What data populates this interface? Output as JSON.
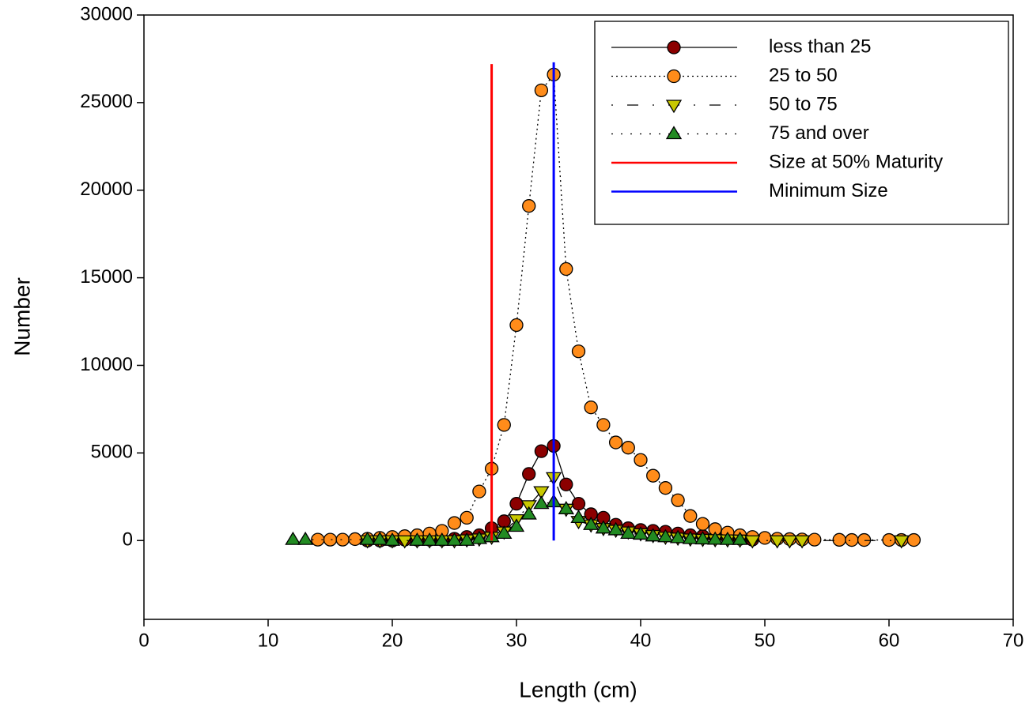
{
  "chart_data": {
    "type": "line",
    "x_label": "Length (cm)",
    "y_label": "Number",
    "xlim": [
      0,
      70
    ],
    "xticks": [
      0,
      10,
      20,
      30,
      40,
      50,
      60,
      70
    ],
    "ylim": [
      -4500,
      30000
    ],
    "yticks": [
      0,
      5000,
      10000,
      15000,
      20000,
      25000,
      30000
    ],
    "grid": false,
    "legend": "upper right",
    "series": [
      {
        "name": "less than 25",
        "color": "#8b0000",
        "marker": "circle",
        "dash": "solid",
        "x": [
          18,
          19,
          20,
          21,
          22,
          23,
          24,
          25,
          26,
          27,
          28,
          29,
          30,
          31,
          32,
          33,
          34,
          35,
          36,
          37,
          38,
          39,
          40,
          41,
          42,
          43,
          44,
          45,
          46,
          47,
          48,
          49
        ],
        "values": [
          0,
          0,
          0,
          50,
          50,
          50,
          50,
          100,
          200,
          300,
          700,
          1100,
          2100,
          3800,
          5100,
          5400,
          3200,
          2100,
          1500,
          1300,
          900,
          700,
          600,
          550,
          500,
          400,
          300,
          250,
          200,
          150,
          100,
          50
        ]
      },
      {
        "name": "25 to 50",
        "color": "#ff8c1a",
        "marker": "circle",
        "dash": "dotted",
        "x": [
          14,
          15,
          16,
          17,
          18,
          19,
          20,
          21,
          22,
          23,
          24,
          25,
          26,
          27,
          28,
          29,
          30,
          31,
          32,
          33,
          34,
          35,
          36,
          37,
          38,
          39,
          40,
          41,
          42,
          43,
          44,
          45,
          46,
          47,
          48,
          49,
          50,
          51,
          52,
          53,
          54,
          56,
          57,
          58,
          60,
          61,
          62
        ],
        "values": [
          50,
          50,
          50,
          80,
          100,
          150,
          200,
          250,
          300,
          400,
          550,
          1000,
          1300,
          2800,
          4100,
          6600,
          12300,
          19100,
          25700,
          26600,
          15500,
          10800,
          7600,
          6600,
          5600,
          5300,
          4600,
          3700,
          3000,
          2300,
          1400,
          950,
          650,
          450,
          300,
          200,
          150,
          100,
          80,
          60,
          50,
          40,
          30,
          30,
          30,
          30,
          30
        ]
      },
      {
        "name": "50 to 75",
        "color": "#c8c800",
        "marker": "triangle-down",
        "dash": "dashdot",
        "x": [
          18,
          19,
          20,
          21,
          22,
          23,
          24,
          25,
          26,
          27,
          28,
          29,
          30,
          31,
          32,
          33,
          34,
          35,
          36,
          37,
          38,
          39,
          40,
          41,
          42,
          43,
          44,
          45,
          46,
          47,
          48,
          49,
          51,
          52,
          53,
          61
        ],
        "values": [
          0,
          0,
          0,
          0,
          0,
          0,
          0,
          0,
          50,
          100,
          200,
          500,
          1200,
          2000,
          2800,
          3600,
          1800,
          1100,
          900,
          700,
          600,
          500,
          400,
          300,
          200,
          150,
          100,
          80,
          60,
          50,
          40,
          0,
          0,
          0,
          0,
          0
        ]
      },
      {
        "name": "75 and over",
        "color": "#228b22",
        "marker": "triangle-up",
        "dash": "sparse-dotted",
        "x": [
          12,
          13,
          18,
          19,
          20,
          22,
          23,
          24,
          25,
          26,
          27,
          28,
          29,
          30,
          31,
          32,
          33,
          34,
          35,
          36,
          37,
          38,
          39,
          40,
          41,
          42,
          43,
          44,
          45,
          46,
          47,
          48
        ],
        "values": [
          50,
          50,
          50,
          50,
          0,
          0,
          0,
          0,
          0,
          0,
          100,
          200,
          400,
          800,
          1500,
          2100,
          2200,
          1800,
          1300,
          900,
          700,
          600,
          400,
          350,
          250,
          200,
          150,
          100,
          80,
          60,
          50,
          50
        ]
      },
      {
        "name": "Size at 50% Maturity",
        "color": "#ff0000",
        "dash": "solid",
        "x": [
          28,
          28
        ],
        "values": [
          0,
          27200
        ]
      },
      {
        "name": "Minimum Size",
        "color": "#0000ff",
        "dash": "solid",
        "x": [
          33,
          33
        ],
        "values": [
          0,
          27300
        ]
      }
    ]
  }
}
